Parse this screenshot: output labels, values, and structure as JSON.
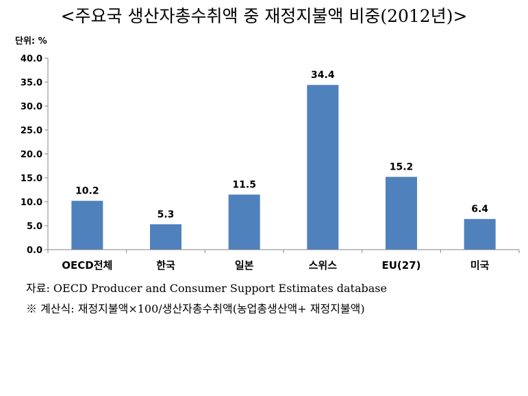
{
  "title": "<주요국 생산자총수취액 중 재정지불액 비중(2012년)>",
  "source_note": "자료: OECD Producer and Consumer Support Estimates database",
  "formula_note": "※ 계산식: 재정지불액×100/생산자총수취액(농업총생산액+ 재정지불액)",
  "colors": {
    "bar": "#4F81BD",
    "axis": "#868686"
  },
  "chart_data": {
    "type": "bar",
    "unit_label": "단위: %",
    "categories": [
      "OECD전체",
      "한국",
      "일본",
      "스위스",
      "EU(27)",
      "미국"
    ],
    "values": [
      10.2,
      5.3,
      11.5,
      34.4,
      15.2,
      6.4
    ],
    "value_labels": [
      "10.2",
      "5.3",
      "11.5",
      "34.4",
      "15.2",
      "6.4"
    ],
    "yticks": [
      "0.0",
      "5.0",
      "10.0",
      "15.0",
      "20.0",
      "25.0",
      "30.0",
      "35.0",
      "40.0"
    ],
    "ylim": [
      0,
      40
    ],
    "grid": false
  }
}
